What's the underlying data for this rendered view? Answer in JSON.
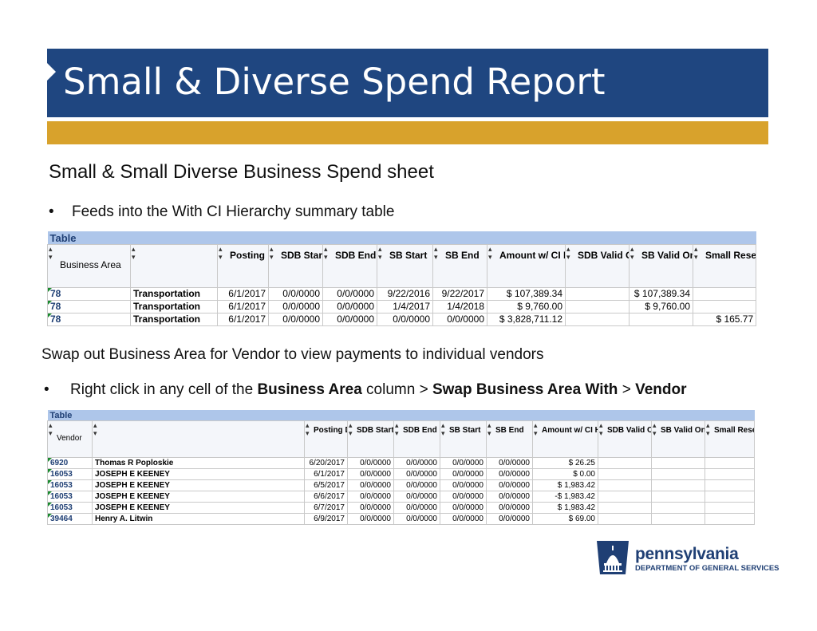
{
  "title": "Small & Diverse Spend Report",
  "subheading": "Small & Small Diverse Business Spend sheet",
  "bullet1": {
    "marker": "•",
    "text": "Feeds into the With CI Hierarchy summary table"
  },
  "paragraph2": "Swap out Business Area for Vendor to view payments to individual vendors",
  "bullet2": {
    "marker": "•",
    "p1": "Right click in any cell of the ",
    "b1": "Business Area",
    "p2": " column > ",
    "b2": "Swap Business Area With",
    "p3": " > ",
    "b3": "Vendor"
  },
  "table1": {
    "caption": "Table",
    "headers": [
      "Business Area",
      "",
      "Posting Date",
      "SDB Start",
      "SDB End",
      "SB Start",
      "SB End",
      "Amount w/ CI Hier",
      "SDB Valid On w/ CI Hier",
      "SB Valid On w/ CI Hier",
      "Small Reserved w/ CI Hier"
    ],
    "rows": [
      [
        "78",
        "Transportation",
        "6/1/2017",
        "0/0/0000",
        "0/0/0000",
        "9/22/2016",
        "9/22/2017",
        "$ 107,389.34",
        "",
        "$ 107,389.34",
        ""
      ],
      [
        "78",
        "Transportation",
        "6/1/2017",
        "0/0/0000",
        "0/0/0000",
        "1/4/2017",
        "1/4/2018",
        "$ 9,760.00",
        "",
        "$ 9,760.00",
        ""
      ],
      [
        "78",
        "Transportation",
        "6/1/2017",
        "0/0/0000",
        "0/0/0000",
        "0/0/0000",
        "0/0/0000",
        "$ 3,828,711.12",
        "",
        "",
        "$ 165.77"
      ]
    ]
  },
  "table2": {
    "caption": "Table",
    "headers": [
      "Vendor",
      "",
      "Posting Date",
      "SDB Start",
      "SDB End",
      "SB Start",
      "SB End",
      "Amount w/ CI Hier",
      "SDB Valid On w/ CI Hier",
      "SB Valid On w/ CI Hier",
      "Small Reserved w/ CI Hier"
    ],
    "rows": [
      [
        "6920",
        "Thomas R Poploskie",
        "6/20/2017",
        "0/0/0000",
        "0/0/0000",
        "0/0/0000",
        "0/0/0000",
        "$ 26.25",
        "",
        "",
        ""
      ],
      [
        "16053",
        "JOSEPH E KEENEY",
        "6/1/2017",
        "0/0/0000",
        "0/0/0000",
        "0/0/0000",
        "0/0/0000",
        "$ 0.00",
        "",
        "",
        ""
      ],
      [
        "16053",
        "JOSEPH E KEENEY",
        "6/5/2017",
        "0/0/0000",
        "0/0/0000",
        "0/0/0000",
        "0/0/0000",
        "$ 1,983.42",
        "",
        "",
        ""
      ],
      [
        "16053",
        "JOSEPH E KEENEY",
        "6/6/2017",
        "0/0/0000",
        "0/0/0000",
        "0/0/0000",
        "0/0/0000",
        "-$ 1,983.42",
        "",
        "",
        ""
      ],
      [
        "16053",
        "JOSEPH E KEENEY",
        "6/7/2017",
        "0/0/0000",
        "0/0/0000",
        "0/0/0000",
        "0/0/0000",
        "$ 1,983.42",
        "",
        "",
        ""
      ],
      [
        "39464",
        "Henry A. Litwin",
        "6/9/2017",
        "0/0/0000",
        "0/0/0000",
        "0/0/0000",
        "0/0/0000",
        "$ 69.00",
        "",
        "",
        ""
      ]
    ]
  },
  "logo": {
    "name": "pennsylvania",
    "department": "DEPARTMENT OF GENERAL SERVICES",
    "icon": "keystone-capitol-icon"
  },
  "colors": {
    "title_bar": "#1f4680",
    "accent_bar": "#d8a22c",
    "table_caption": "#aec6ea"
  }
}
